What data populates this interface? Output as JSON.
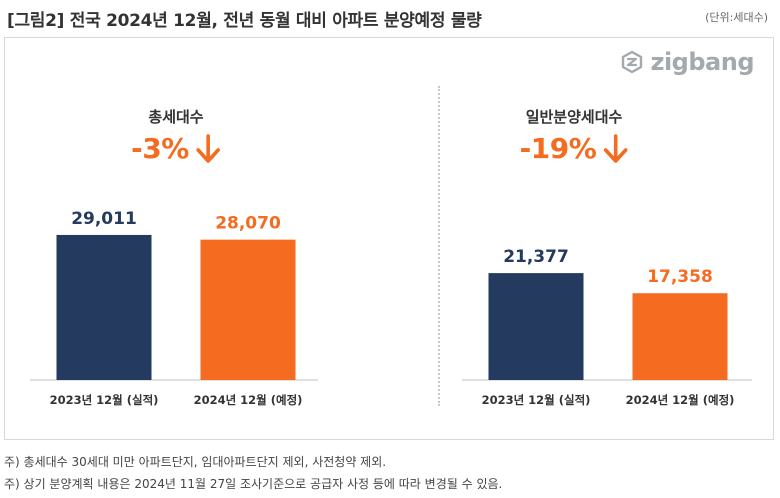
{
  "title": "[그림2] 전국 2024년 12월, 전년 동월 대비 아파트 분양예정 물량",
  "unit_label": "(단위:세대수)",
  "logo": {
    "text": "zigbang",
    "icon": "zigbang-logo-icon"
  },
  "colors": {
    "actual": "#243a5e",
    "planned": "#f56b1f",
    "change": "#f56b1f"
  },
  "chart_data": [
    {
      "type": "bar",
      "title": "총세대수",
      "change_label": "-3%",
      "change_icon": "down-arrow-icon",
      "categories": [
        "2023년 12월 (실적)",
        "2024년 12월 (예정)"
      ],
      "values": [
        29011,
        28070
      ],
      "value_labels": [
        "29,011",
        "28,070"
      ],
      "ylim": [
        0,
        31000
      ]
    },
    {
      "type": "bar",
      "title": "일반분양세대수",
      "change_label": "-19%",
      "change_icon": "down-arrow-icon",
      "categories": [
        "2023년 12월 (실적)",
        "2024년 12월 (예정)"
      ],
      "values": [
        21377,
        17358
      ],
      "value_labels": [
        "21,377",
        "17,358"
      ],
      "ylim": [
        0,
        31000
      ]
    }
  ],
  "footnotes": [
    "주) 총세대수 30세대 미만 아파트단지, 임대아파트단지 제외, 사전청약 제외.",
    "주) 상기 분양계획 내용은 2024년 11월 27일  조사기준으로 공급자 사정 등에 따라 변경될 수 있음."
  ]
}
